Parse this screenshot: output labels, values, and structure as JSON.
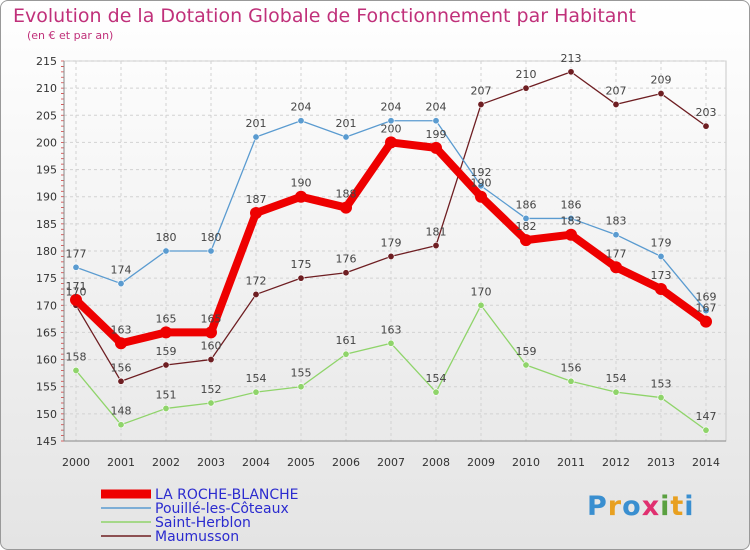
{
  "title": "Evolution de la Dotation Globale de Fonctionnement par Habitant",
  "subtitle": "(en € et par an)",
  "logo": {
    "letters": [
      "P",
      "r",
      "o",
      "x",
      "i",
      "t",
      "i"
    ],
    "colors": [
      "#3a8fd0",
      "#e8a020",
      "#3a8fd0",
      "#e03070",
      "#5aa040",
      "#e8a020",
      "#3a8fd0"
    ]
  },
  "chart_data": {
    "type": "line",
    "x": [
      "2000",
      "2001",
      "2002",
      "2003",
      "2004",
      "2005",
      "2006",
      "2007",
      "2008",
      "2009",
      "2010",
      "2011",
      "2012",
      "2013",
      "2014"
    ],
    "ylim": [
      145,
      215
    ],
    "yticks": [
      145,
      150,
      155,
      160,
      165,
      170,
      175,
      180,
      185,
      190,
      195,
      200,
      205,
      210,
      215
    ],
    "grid": true,
    "series": [
      {
        "name": "Maumusson",
        "color": "#6e1e22",
        "values": [
          170,
          156,
          159,
          160,
          172,
          175,
          176,
          179,
          181,
          207,
          210,
          213,
          207,
          209,
          203
        ]
      },
      {
        "name": "Saint-Herblon",
        "color": "#8fd46a",
        "values": [
          158,
          148,
          151,
          152,
          154,
          155,
          161,
          163,
          154,
          170,
          159,
          156,
          154,
          153,
          147
        ]
      },
      {
        "name": "Pouillé-les-Côteaux",
        "color": "#5a9bd0",
        "values": [
          177,
          174,
          180,
          180,
          201,
          204,
          201,
          204,
          204,
          192,
          186,
          186,
          183,
          179,
          169
        ]
      },
      {
        "name": "LA ROCHE-BLANCHE",
        "color": "#ee0000",
        "values": [
          171,
          163,
          165,
          165,
          187,
          190,
          188,
          200,
          199,
          190,
          182,
          183,
          177,
          173,
          167
        ]
      }
    ],
    "legend": {
      "position": "bottom-left",
      "order": [
        "LA ROCHE-BLANCHE",
        "Pouillé-les-Côteaux",
        "Saint-Herblon",
        "Maumusson"
      ]
    }
  }
}
